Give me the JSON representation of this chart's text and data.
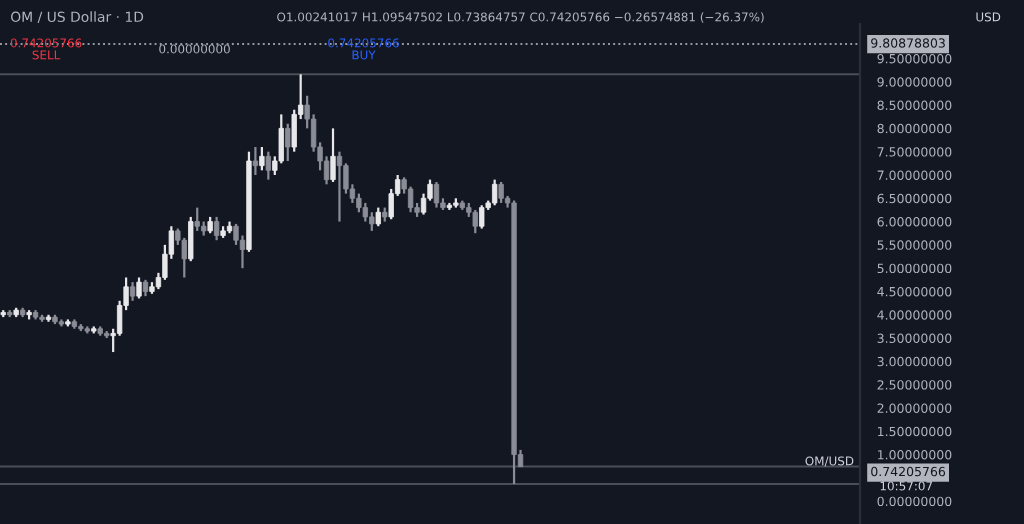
{
  "chart_data": {
    "type": "candlestick",
    "title": "OM / US Dollar · 1D",
    "annotations": [
      "O1.00241017 H1.09547502 L0.73864757 C0.74205766 −0.26574881 (−26.37%)",
      "0.74205766",
      "SELL",
      "0.00000000",
      "0.74205766",
      "BUY",
      "USD",
      "OM/USD",
      "10:57:07"
    ],
    "categories": [
      null,
      null,
      null,
      null,
      null,
      null,
      null,
      null,
      null,
      null,
      null,
      null,
      null,
      null,
      null,
      null,
      null,
      null,
      null,
      null,
      null,
      null,
      null,
      null,
      null,
      null,
      null,
      null,
      null,
      null,
      null,
      null,
      null,
      null,
      null,
      null,
      null,
      null,
      null,
      null,
      null,
      null,
      null,
      null,
      null,
      null,
      null,
      null,
      null,
      null,
      null,
      null,
      null,
      null,
      null,
      null,
      null,
      null,
      null,
      null,
      null,
      null,
      null,
      null,
      null,
      null,
      null,
      null,
      null,
      null,
      null,
      null,
      null,
      null,
      null,
      null,
      null,
      null,
      null,
      null,
      null,
      null,
      null,
      null,
      null,
      null,
      null,
      null,
      null,
      null,
      null,
      null,
      null,
      null,
      null,
      null,
      null,
      null,
      null,
      null,
      null,
      null,
      null,
      null,
      null,
      null,
      null,
      null,
      null,
      null,
      null,
      null,
      null,
      null,
      null,
      null,
      null,
      null,
      null,
      null,
      null,
      null,
      null,
      null,
      null,
      null,
      null,
      null,
      null,
      null,
      null,
      null,
      null
    ],
    "ohlc": [
      [
        4.0,
        4.1,
        3.95,
        4.05
      ],
      [
        4.05,
        4.1,
        3.95,
        4.0
      ],
      [
        4.0,
        4.15,
        3.95,
        4.1
      ],
      [
        4.1,
        4.15,
        3.95,
        4.0
      ],
      [
        4.0,
        4.1,
        3.9,
        4.05
      ],
      [
        4.05,
        4.1,
        3.9,
        3.95
      ],
      [
        3.95,
        4.0,
        3.85,
        3.9
      ],
      [
        3.9,
        4.0,
        3.85,
        3.95
      ],
      [
        3.95,
        4.0,
        3.8,
        3.85
      ],
      [
        3.85,
        3.9,
        3.75,
        3.8
      ],
      [
        3.8,
        3.9,
        3.75,
        3.85
      ],
      [
        3.85,
        3.9,
        3.7,
        3.75
      ],
      [
        3.75,
        3.8,
        3.65,
        3.7
      ],
      [
        3.7,
        3.75,
        3.6,
        3.65
      ],
      [
        3.65,
        3.75,
        3.6,
        3.7
      ],
      [
        3.7,
        3.75,
        3.55,
        3.6
      ],
      [
        3.6,
        3.65,
        3.5,
        3.55
      ],
      [
        3.55,
        3.7,
        3.2,
        3.6
      ],
      [
        3.6,
        4.3,
        3.55,
        4.2
      ],
      [
        4.2,
        4.8,
        4.1,
        4.6
      ],
      [
        4.6,
        4.7,
        4.3,
        4.4
      ],
      [
        4.4,
        4.8,
        4.35,
        4.7
      ],
      [
        4.7,
        4.75,
        4.4,
        4.5
      ],
      [
        4.5,
        4.7,
        4.45,
        4.6
      ],
      [
        4.6,
        4.9,
        4.55,
        4.8
      ],
      [
        4.8,
        5.5,
        4.75,
        5.3
      ],
      [
        5.3,
        5.9,
        5.2,
        5.8
      ],
      [
        5.8,
        5.85,
        5.5,
        5.6
      ],
      [
        5.6,
        5.65,
        4.8,
        5.2
      ],
      [
        5.2,
        6.1,
        5.15,
        6.0
      ],
      [
        6.0,
        6.3,
        5.8,
        5.9
      ],
      [
        5.9,
        6.0,
        5.7,
        5.8
      ],
      [
        5.8,
        6.1,
        5.75,
        6.0
      ],
      [
        6.0,
        6.1,
        5.6,
        5.7
      ],
      [
        5.7,
        5.9,
        5.65,
        5.8
      ],
      [
        5.8,
        6.0,
        5.75,
        5.9
      ],
      [
        5.9,
        5.95,
        5.5,
        5.6
      ],
      [
        5.6,
        5.7,
        5.0,
        5.4
      ],
      [
        5.4,
        7.5,
        5.35,
        7.3
      ],
      [
        7.3,
        7.6,
        7.0,
        7.2
      ],
      [
        7.2,
        7.6,
        7.1,
        7.4
      ],
      [
        7.4,
        7.5,
        6.9,
        7.1
      ],
      [
        7.1,
        7.4,
        7.0,
        7.3
      ],
      [
        7.3,
        8.3,
        7.25,
        8.0
      ],
      [
        8.0,
        8.1,
        7.3,
        7.6
      ],
      [
        7.6,
        8.4,
        7.5,
        8.3
      ],
      [
        8.3,
        9.16,
        8.2,
        8.5
      ],
      [
        8.5,
        8.7,
        8.0,
        8.2
      ],
      [
        8.2,
        8.3,
        7.5,
        7.6
      ],
      [
        7.6,
        7.7,
        7.1,
        7.3
      ],
      [
        7.3,
        7.4,
        6.8,
        6.9
      ],
      [
        6.9,
        8.0,
        6.85,
        7.4
      ],
      [
        7.4,
        7.5,
        6.0,
        7.2
      ],
      [
        7.2,
        7.25,
        6.6,
        6.7
      ],
      [
        6.7,
        6.8,
        6.4,
        6.5
      ],
      [
        6.5,
        6.6,
        6.2,
        6.3
      ],
      [
        6.3,
        6.4,
        6.0,
        6.1
      ],
      [
        6.1,
        6.2,
        5.8,
        5.95
      ],
      [
        5.95,
        6.3,
        5.9,
        6.2
      ],
      [
        6.2,
        6.3,
        6.0,
        6.1
      ],
      [
        6.1,
        6.7,
        6.05,
        6.6
      ],
      [
        6.6,
        7.0,
        6.55,
        6.9
      ],
      [
        6.9,
        6.95,
        6.6,
        6.7
      ],
      [
        6.7,
        6.75,
        6.2,
        6.3
      ],
      [
        6.3,
        6.4,
        6.1,
        6.2
      ],
      [
        6.2,
        6.6,
        6.15,
        6.5
      ],
      [
        6.5,
        6.9,
        6.45,
        6.8
      ],
      [
        6.8,
        6.85,
        6.3,
        6.4
      ],
      [
        6.4,
        6.5,
        6.25,
        6.3
      ],
      [
        6.3,
        6.4,
        6.25,
        6.35
      ],
      [
        6.35,
        6.5,
        6.3,
        6.4
      ],
      [
        6.4,
        6.45,
        6.25,
        6.3
      ],
      [
        6.3,
        6.4,
        6.1,
        6.2
      ],
      [
        6.2,
        6.25,
        5.75,
        5.9
      ],
      [
        5.9,
        6.35,
        5.85,
        6.3
      ],
      [
        6.3,
        6.45,
        6.25,
        6.4
      ],
      [
        6.4,
        6.9,
        6.35,
        6.8
      ],
      [
        6.8,
        6.85,
        6.4,
        6.5
      ],
      [
        6.5,
        6.55,
        6.3,
        6.4
      ],
      [
        6.4,
        6.45,
        0.37,
        1.0
      ],
      [
        1.0,
        1.1,
        0.74,
        0.74
      ],
      null,
      null,
      null,
      null,
      null,
      null,
      null,
      null,
      null,
      null,
      null,
      null,
      null,
      null,
      null,
      null,
      null,
      null,
      null,
      null,
      null,
      null,
      null,
      null,
      null,
      null,
      null,
      null,
      null,
      null,
      null,
      null,
      null,
      null,
      null,
      null,
      null,
      null,
      null,
      null,
      null,
      null,
      null,
      null,
      null,
      null,
      null,
      null,
      null,
      null,
      null,
      null
    ],
    "ylim": [
      -0.49,
      10.24
    ],
    "yticks": [
      {
        "value": 0,
        "label": "0.00000000"
      },
      {
        "value": 1,
        "label": "1.00000000"
      },
      {
        "value": 1.5,
        "label": "1.50000000"
      },
      {
        "value": 2,
        "label": "2.00000000"
      },
      {
        "value": 2.5,
        "label": "2.50000000"
      },
      {
        "value": 3,
        "label": "3.00000000"
      },
      {
        "value": 3.5,
        "label": "3.50000000"
      },
      {
        "value": 4,
        "label": "4.00000000"
      },
      {
        "value": 4.5,
        "label": "4.50000000"
      },
      {
        "value": 5,
        "label": "5.00000000"
      },
      {
        "value": 5.5,
        "label": "5.50000000"
      },
      {
        "value": 6,
        "label": "6.00000000"
      },
      {
        "value": 6.5,
        "label": "6.50000000"
      },
      {
        "value": 7,
        "label": "7.00000000"
      },
      {
        "value": 7.5,
        "label": "7.50000000"
      },
      {
        "value": 8,
        "label": "8.00000000"
      },
      {
        "value": 8.5,
        "label": "8.50000000"
      },
      {
        "value": 9,
        "label": "9.00000000"
      },
      {
        "value": 9.5,
        "label": "9.50000000"
      }
    ],
    "ref_lines": [
      {
        "axis": "y",
        "value": 9.80878803,
        "label": "9.80878803",
        "line_style": "dotted",
        "color": "#9598a1"
      },
      {
        "axis": "y",
        "value": 9.16,
        "label": null,
        "line_style": "solid",
        "color": "#4a4e59"
      },
      {
        "axis": "y",
        "value": 0.74205766,
        "label": "0.74205766",
        "line_style": "solid",
        "color": "#4a4e59"
      },
      {
        "axis": "y",
        "value": 0.37,
        "label": null,
        "line_style": "solid",
        "color": "#4a4e59"
      }
    ],
    "grid": false,
    "legend": false
  }
}
